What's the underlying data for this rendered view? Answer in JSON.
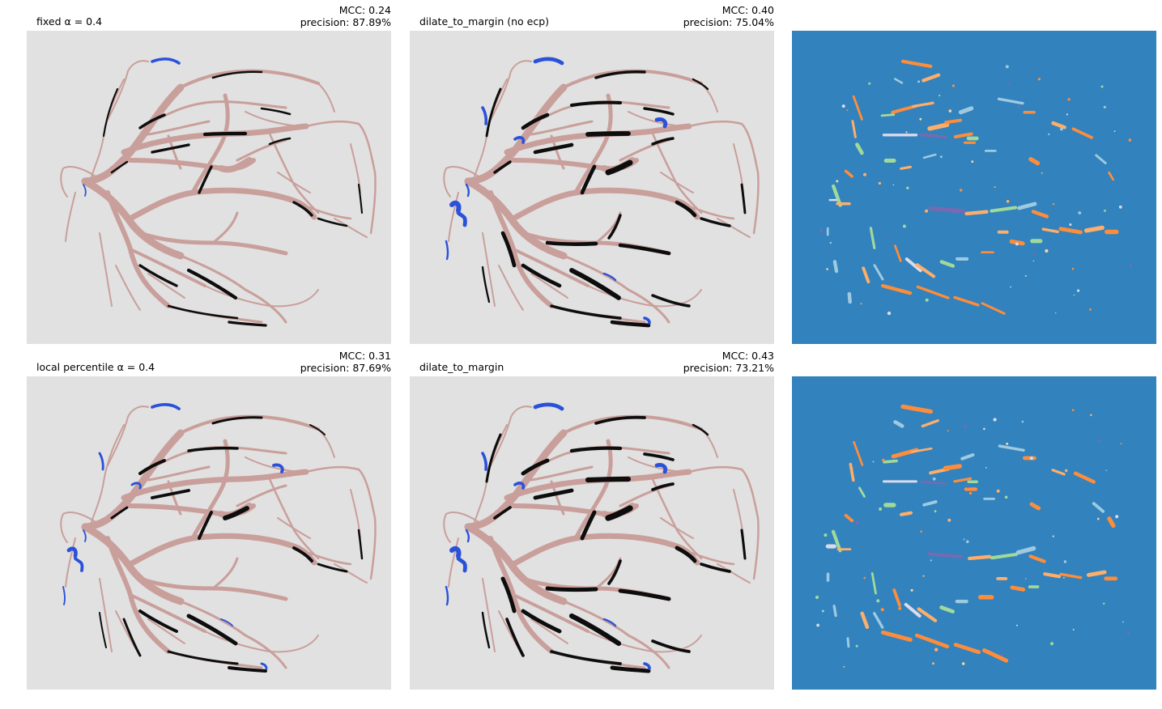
{
  "panels": [
    {
      "id": "p1",
      "row": 0,
      "col": 0,
      "title": "fixed α = 0.4",
      "mcc": "MCC: 0.24",
      "precision": "precision: 87.89%",
      "background": "#e1e1e1",
      "kind": "overlay",
      "black_density": 0.35,
      "blue_amount": 0.4
    },
    {
      "id": "p2",
      "row": 0,
      "col": 1,
      "title": "dilate_to_margin (no ecp)",
      "mcc": "MCC: 0.40",
      "precision": "precision: 75.04%",
      "background": "#e1e1e1",
      "kind": "overlay",
      "black_density": 0.8,
      "blue_amount": 1.0
    },
    {
      "id": "p3",
      "row": 0,
      "col": 2,
      "background": "#3182bd",
      "kind": "labels"
    },
    {
      "id": "p4",
      "row": 1,
      "col": 0,
      "title": "local percentile α = 0.4",
      "mcc": "MCC: 0.31",
      "precision": "precision: 87.69%",
      "background": "#e1e1e1",
      "kind": "overlay",
      "black_density": 0.55,
      "blue_amount": 0.5
    },
    {
      "id": "p5",
      "row": 1,
      "col": 1,
      "title": "dilate_to_margin",
      "mcc": "MCC: 0.43",
      "precision": "precision: 73.21%",
      "background": "#e1e1e1",
      "kind": "overlay",
      "black_density": 0.9,
      "blue_amount": 1.0
    },
    {
      "id": "p6",
      "row": 1,
      "col": 2,
      "background": "#3182bd",
      "kind": "labels"
    }
  ],
  "colors": {
    "vessel": "#c99f9b",
    "detected": "#0d0d0d",
    "false_positive": "#2a52d9",
    "label_palette": [
      "#fd8d3c",
      "#fdae6b",
      "#a1d99b",
      "#9ecae1",
      "#dadaeb",
      "#756bb1",
      "#fdd0a2"
    ]
  }
}
